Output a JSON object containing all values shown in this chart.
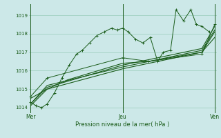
{
  "background_color": "#cce8e8",
  "grid_color": "#99ccbb",
  "line_color": "#1a5c1a",
  "title": "Pression niveau de la mer( hPa )",
  "day_labels": [
    "Mer",
    "Jeu",
    "Ven"
  ],
  "day_positions": [
    0.0,
    0.5,
    1.0
  ],
  "ylim": [
    1013.7,
    1019.6
  ],
  "yticks": [
    1014,
    1015,
    1016,
    1017,
    1018,
    1019
  ],
  "series1_x": [
    0.0,
    0.03,
    0.06,
    0.09,
    0.13,
    0.17,
    0.21,
    0.25,
    0.28,
    0.32,
    0.36,
    0.4,
    0.44,
    0.47,
    0.5,
    0.53,
    0.57,
    0.61,
    0.65,
    0.69,
    0.72,
    0.76,
    0.79,
    0.83,
    0.87,
    0.9,
    0.93,
    0.97
  ],
  "series1_y": [
    1014.3,
    1014.1,
    1014.0,
    1014.2,
    1014.8,
    1015.6,
    1016.3,
    1016.9,
    1017.1,
    1017.5,
    1017.9,
    1018.1,
    1018.3,
    1018.2,
    1018.3,
    1018.1,
    1017.7,
    1017.5,
    1017.8,
    1016.5,
    1017.0,
    1017.1,
    1019.3,
    1018.7,
    1019.3,
    1018.5,
    1018.4,
    1018.1
  ],
  "series2_x": [
    0.0,
    0.09,
    0.2,
    0.5,
    0.64,
    0.93,
    1.0
  ],
  "series2_y": [
    1014.5,
    1015.0,
    1015.5,
    1016.4,
    1016.5,
    1017.0,
    1017.8
  ],
  "series3_x": [
    0.0,
    0.09,
    0.5,
    0.93,
    1.0
  ],
  "series3_y": [
    1014.2,
    1015.2,
    1016.2,
    1017.1,
    1018.2
  ],
  "series4_x": [
    0.0,
    0.09,
    0.5,
    0.93,
    1.0
  ],
  "series4_y": [
    1014.1,
    1015.0,
    1016.1,
    1017.0,
    1018.1
  ],
  "series5_x": [
    0.0,
    0.09,
    0.5,
    0.93,
    1.0
  ],
  "series5_y": [
    1014.2,
    1015.1,
    1016.3,
    1017.2,
    1018.4
  ],
  "series6_x": [
    0.0,
    0.09,
    0.5,
    0.64,
    0.93,
    1.0
  ],
  "series6_y": [
    1014.6,
    1015.6,
    1016.7,
    1016.5,
    1016.9,
    1018.5
  ]
}
